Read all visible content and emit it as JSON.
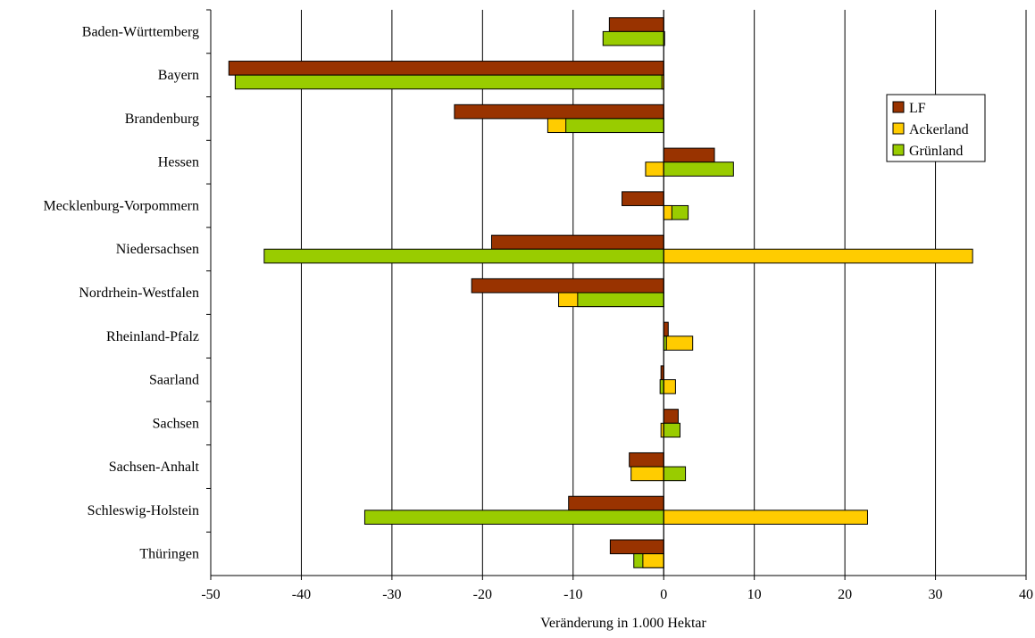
{
  "chart_data": {
    "type": "bar",
    "orientation": "horizontal",
    "title": "",
    "xlabel": "Veränderung in 1.000 Hektar",
    "ylabel": "",
    "xlim": [
      -50,
      40
    ],
    "xticks": [
      -50,
      -40,
      -30,
      -20,
      -10,
      0,
      10,
      20,
      30,
      40
    ],
    "grid": "vertical",
    "legend_position": "right",
    "categories": [
      "Baden-Württemberg",
      "Bayern",
      "Brandenburg",
      "Hessen",
      "Mecklenburg-Vorpommern",
      "Niedersachsen",
      "Nordrhein-Westfalen",
      "Rheinland-Pfalz",
      "Saarland",
      "Sachsen",
      "Sachsen-Anhalt",
      "Schleswig-Holstein",
      "Thüringen"
    ],
    "series": [
      {
        "name": "LF",
        "color": "#993300",
        "values": [
          -6.0,
          -48.0,
          -23.1,
          5.6,
          -4.6,
          -19.0,
          -21.2,
          0.5,
          -0.3,
          1.6,
          -3.8,
          -10.5,
          -5.9
        ]
      },
      {
        "name": "Ackerland",
        "color": "#FFCC00",
        "values": [
          0.1,
          -0.2,
          -12.8,
          -2.0,
          0.9,
          34.1,
          -11.6,
          3.2,
          1.3,
          -0.3,
          -3.6,
          22.5,
          -2.3
        ]
      },
      {
        "name": "Grünland",
        "color": "#99CC00",
        "values": [
          -6.7,
          -47.3,
          -10.8,
          7.7,
          2.7,
          -44.1,
          -9.5,
          0.3,
          -0.4,
          1.8,
          2.4,
          -33.0,
          -3.3
        ]
      }
    ]
  }
}
